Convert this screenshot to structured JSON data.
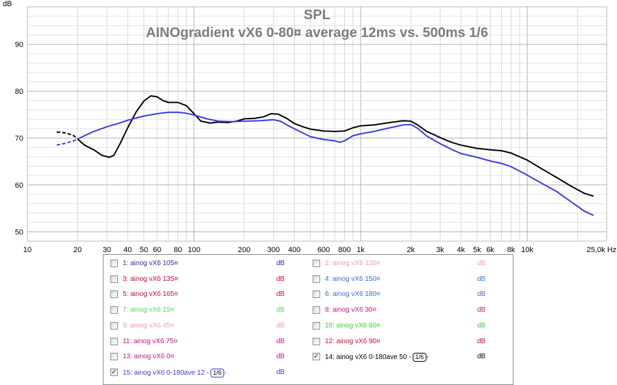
{
  "chart_data": {
    "type": "line",
    "title": "SPL",
    "subtitle": "AINOgradient vX6 0-80¤ average 12ms vs. 500ms 1/6",
    "ylabel": "dB",
    "xlabel": "Hz",
    "x_scale": "log",
    "xlim": [
      10,
      30000
    ],
    "ylim": [
      48,
      98
    ],
    "x_ticks": [
      {
        "v": 10,
        "label": "10"
      },
      {
        "v": 20,
        "label": "20"
      },
      {
        "v": 30,
        "label": "30"
      },
      {
        "v": 40,
        "label": "40"
      },
      {
        "v": 50,
        "label": "50"
      },
      {
        "v": 60,
        "label": "60"
      },
      {
        "v": 80,
        "label": "80"
      },
      {
        "v": 100,
        "label": "100"
      },
      {
        "v": 200,
        "label": "200"
      },
      {
        "v": 300,
        "label": "300"
      },
      {
        "v": 400,
        "label": "400"
      },
      {
        "v": 600,
        "label": "600"
      },
      {
        "v": 800,
        "label": "800"
      },
      {
        "v": 1000,
        "label": "1k"
      },
      {
        "v": 2000,
        "label": "2k"
      },
      {
        "v": 3000,
        "label": "3k"
      },
      {
        "v": 4000,
        "label": "4k"
      },
      {
        "v": 5000,
        "label": "5k"
      },
      {
        "v": 6000,
        "label": "6k"
      },
      {
        "v": 8000,
        "label": "8k"
      },
      {
        "v": 10000,
        "label": "10k"
      },
      {
        "v": 25000,
        "label": "25,0k Hz"
      }
    ],
    "y_ticks": [
      50,
      60,
      70,
      80,
      90
    ],
    "grid": true,
    "series": [
      {
        "name": "14: ainog vX6 0-180ave 50",
        "color": "#000000",
        "dashed_below": 20,
        "points": [
          [
            15,
            71.3
          ],
          [
            17,
            71.1
          ],
          [
            19,
            70.5
          ],
          [
            20,
            69.8
          ],
          [
            22,
            68.5
          ],
          [
            25,
            67.5
          ],
          [
            28,
            66.3
          ],
          [
            31,
            65.9
          ],
          [
            33,
            66.3
          ],
          [
            36,
            68.8
          ],
          [
            40,
            72.2
          ],
          [
            45,
            75.6
          ],
          [
            50,
            77.9
          ],
          [
            55,
            79
          ],
          [
            60,
            78.8
          ],
          [
            65,
            78
          ],
          [
            70,
            77.6
          ],
          [
            80,
            77.6
          ],
          [
            90,
            76.9
          ],
          [
            100,
            75.2
          ],
          [
            110,
            73.6
          ],
          [
            125,
            73.2
          ],
          [
            140,
            73.4
          ],
          [
            160,
            73.3
          ],
          [
            180,
            73.6
          ],
          [
            200,
            74.1
          ],
          [
            230,
            74.2
          ],
          [
            260,
            74.5
          ],
          [
            290,
            75.2
          ],
          [
            320,
            75.1
          ],
          [
            360,
            74.2
          ],
          [
            400,
            73.1
          ],
          [
            450,
            72.4
          ],
          [
            500,
            71.9
          ],
          [
            600,
            71.5
          ],
          [
            700,
            71.4
          ],
          [
            800,
            71.5
          ],
          [
            900,
            72.2
          ],
          [
            1000,
            72.6
          ],
          [
            1200,
            72.8
          ],
          [
            1500,
            73.3
          ],
          [
            1800,
            73.7
          ],
          [
            2000,
            73.6
          ],
          [
            2200,
            72.8
          ],
          [
            2500,
            71.4
          ],
          [
            3000,
            70.1
          ],
          [
            3500,
            69.1
          ],
          [
            4000,
            68.5
          ],
          [
            5000,
            67.8
          ],
          [
            6000,
            67.5
          ],
          [
            7000,
            67.3
          ],
          [
            8000,
            66.8
          ],
          [
            10000,
            65.3
          ],
          [
            12000,
            63.6
          ],
          [
            15000,
            61.6
          ],
          [
            18000,
            59.9
          ],
          [
            22000,
            58.2
          ],
          [
            25000,
            57.6
          ]
        ]
      },
      {
        "name": "15: ainog vX6 0-180ave 12",
        "color": "#3a3aea",
        "dashed_below": 20,
        "points": [
          [
            15,
            68.5
          ],
          [
            17,
            68.9
          ],
          [
            19,
            69.4
          ],
          [
            20,
            69.8
          ],
          [
            22,
            70.5
          ],
          [
            25,
            71.4
          ],
          [
            30,
            72.4
          ],
          [
            35,
            73.1
          ],
          [
            40,
            73.8
          ],
          [
            50,
            74.7
          ],
          [
            60,
            75.2
          ],
          [
            70,
            75.5
          ],
          [
            80,
            75.5
          ],
          [
            90,
            75.3
          ],
          [
            100,
            74.9
          ],
          [
            120,
            74.1
          ],
          [
            140,
            73.6
          ],
          [
            170,
            73.5
          ],
          [
            200,
            73.6
          ],
          [
            250,
            73.7
          ],
          [
            300,
            73.9
          ],
          [
            330,
            73.6
          ],
          [
            370,
            72.6
          ],
          [
            420,
            71.6
          ],
          [
            500,
            70.3
          ],
          [
            600,
            69.7
          ],
          [
            700,
            69.4
          ],
          [
            750,
            69.1
          ],
          [
            800,
            69.4
          ],
          [
            900,
            70.5
          ],
          [
            1000,
            70.9
          ],
          [
            1200,
            71.4
          ],
          [
            1500,
            72.2
          ],
          [
            1800,
            72.8
          ],
          [
            2000,
            72.9
          ],
          [
            2200,
            72.1
          ],
          [
            2500,
            70.4
          ],
          [
            3000,
            68.8
          ],
          [
            3500,
            67.6
          ],
          [
            4000,
            66.7
          ],
          [
            5000,
            65.9
          ],
          [
            6000,
            65.1
          ],
          [
            7000,
            64.6
          ],
          [
            8000,
            63.9
          ],
          [
            10000,
            62.1
          ],
          [
            12000,
            60.5
          ],
          [
            15000,
            58.6
          ],
          [
            18000,
            56.6
          ],
          [
            22000,
            54.4
          ],
          [
            25000,
            53.5
          ]
        ]
      }
    ]
  },
  "legend": {
    "items": [
      {
        "label": "1: ainog vX6 105¤",
        "unit": "dB",
        "color": "#2d2d9c",
        "unit_color": "#2d2d9c",
        "checked": false
      },
      {
        "label": "2: ainog vX6 120¤",
        "unit": "dB",
        "color": "#f0a0a0",
        "unit_color": "#f0a0a0",
        "checked": false
      },
      {
        "label": "3: ainog vX6 135¤",
        "unit": "dB",
        "color": "#c8102e",
        "unit_color": "#c8102e",
        "checked": false
      },
      {
        "label": "4: ainog vX6 150¤",
        "unit": "dB",
        "color": "#3a6fd8",
        "unit_color": "#3a6fd8",
        "checked": false
      },
      {
        "label": "5: ainog vX6 165¤",
        "unit": "dB",
        "color": "#c8102e",
        "unit_color": "#c8102e",
        "checked": false
      },
      {
        "label": "6: ainog vX6 180¤",
        "unit": "dB",
        "color": "#3a6fd8",
        "unit_color": "#3a6fd8",
        "checked": false
      },
      {
        "label": "7: ainog vX6 15¤",
        "unit": "dB",
        "color": "#5cd65c",
        "unit_color": "#5cd65c",
        "checked": false
      },
      {
        "label": "8: ainog vX6 30¤",
        "unit": "dB",
        "color": "#c8148c",
        "unit_color": "#c8148c",
        "checked": false
      },
      {
        "label": "9: ainog vX6 45¤",
        "unit": "dB",
        "color": "#f0a0a0",
        "unit_color": "#f0a0a0",
        "checked": false
      },
      {
        "label": "10: ainog vX6 60¤",
        "unit": "dB",
        "color": "#3cc83c",
        "unit_color": "#3cc83c",
        "checked": false
      },
      {
        "label": "11: ainog vX6 75¤",
        "unit": "dB",
        "color": "#c8148c",
        "unit_color": "#c8148c",
        "checked": false
      },
      {
        "label": "12: ainog vX6 90¤",
        "unit": "dB",
        "color": "#c8102e",
        "unit_color": "#c8102e",
        "checked": false
      },
      {
        "label": "13: ainog vX6 0¤",
        "unit": "dB",
        "color": "#c8148c",
        "unit_color": "#c8148c",
        "checked": false
      },
      {
        "label": "14: ainog vX6 0-180ave 50",
        "smoothing": "1/6",
        "unit": "dB",
        "color": "#000000",
        "unit_color": "#000000",
        "checked": true
      },
      {
        "label": "15: ainog vX6 0-180ave 12",
        "smoothing": "1/6",
        "unit": "dB",
        "color": "#3a3aea",
        "unit_color": "#3a3aea",
        "checked": true
      }
    ]
  }
}
